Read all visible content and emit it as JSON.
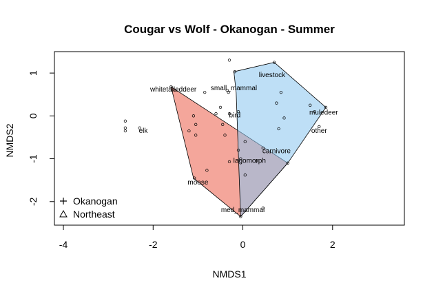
{
  "chart_data": {
    "type": "scatter",
    "title": "Cougar vs Wolf - Okanogan - Summer",
    "xlabel": "NMDS1",
    "ylabel": "NMDS2",
    "xlim": [
      -4.2,
      3.6
    ],
    "ylim": [
      -2.55,
      1.5
    ],
    "x_ticks": [
      -4,
      -2,
      0,
      2
    ],
    "y_ticks": [
      -2,
      -1,
      0,
      1
    ],
    "x_tick_labels": [
      "-4",
      "-2",
      "0",
      "2"
    ],
    "y_tick_labels": [
      "-2",
      "-1",
      "0",
      "1"
    ],
    "legend": {
      "position": "bottom-left",
      "entries": [
        {
          "label": "Okanogan",
          "symbol": "plus"
        },
        {
          "label": "Northeast",
          "symbol": "triangle"
        }
      ]
    },
    "hulls": [
      {
        "group": "Okanogan",
        "color": "#f08070",
        "opacity": 0.7,
        "points": [
          [
            -1.6,
            0.68
          ],
          [
            1.0,
            -1.1
          ],
          [
            -0.05,
            -2.35
          ],
          [
            -1.1,
            -1.45
          ]
        ]
      },
      {
        "group": "Northeast",
        "color": "#88c4ee",
        "opacity": 0.55,
        "points": [
          [
            -0.2,
            1.03
          ],
          [
            0.7,
            1.25
          ],
          [
            1.85,
            0.2
          ],
          [
            1.0,
            -1.1
          ],
          [
            -0.05,
            -2.35
          ],
          [
            -0.15,
            0.55
          ]
        ]
      }
    ],
    "points": [
      [
        -0.3,
        1.3
      ],
      [
        -0.18,
        1.03
      ],
      [
        0.7,
        1.25
      ],
      [
        0.85,
        0.55
      ],
      [
        0.75,
        0.3
      ],
      [
        1.5,
        0.25
      ],
      [
        1.6,
        0.1
      ],
      [
        0.92,
        -0.05
      ],
      [
        0.8,
        -0.3
      ],
      [
        1.85,
        0.2
      ],
      [
        1.7,
        -0.25
      ],
      [
        -1.6,
        0.68
      ],
      [
        -1.52,
        0.6
      ],
      [
        -0.85,
        0.55
      ],
      [
        -0.32,
        0.55
      ],
      [
        -0.35,
        0.6
      ],
      [
        -0.5,
        0.2
      ],
      [
        -0.6,
        0.05
      ],
      [
        -0.1,
        0.1
      ],
      [
        -0.3,
        0.05
      ],
      [
        -1.1,
        0.0
      ],
      [
        -1.05,
        -0.2
      ],
      [
        -0.45,
        -0.2
      ],
      [
        -1.2,
        -0.35
      ],
      [
        -1.05,
        -0.45
      ],
      [
        -0.4,
        -0.45
      ],
      [
        0.05,
        -0.6
      ],
      [
        -0.1,
        -0.8
      ],
      [
        0.45,
        -0.75
      ],
      [
        0.3,
        -1.05
      ],
      [
        -0.05,
        -1.0
      ],
      [
        -0.3,
        -1.07
      ],
      [
        0.05,
        -1.38
      ],
      [
        -0.8,
        -1.27
      ],
      [
        -1.08,
        -1.45
      ],
      [
        -0.05,
        -2.35
      ],
      [
        0.45,
        -2.15
      ],
      [
        1.0,
        -1.1
      ],
      [
        -2.62,
        -0.12
      ],
      [
        -2.62,
        -0.28
      ],
      [
        -2.62,
        -0.35
      ],
      [
        -2.3,
        -0.28
      ]
    ],
    "labels": [
      {
        "text": "livestock",
        "x": 0.65,
        "y": 0.95
      },
      {
        "text": "small_mammal",
        "x": -0.2,
        "y": 0.65
      },
      {
        "text": "whitetaileddeer",
        "x": -1.55,
        "y": 0.62
      },
      {
        "text": "bird",
        "x": -0.18,
        "y": 0.01
      },
      {
        "text": "muledeer",
        "x": 1.8,
        "y": 0.08
      },
      {
        "text": "elk",
        "x": -2.22,
        "y": -0.35
      },
      {
        "text": "other",
        "x": 1.7,
        "y": -0.35
      },
      {
        "text": "carnivore",
        "x": 0.75,
        "y": -0.82
      },
      {
        "text": "lagomorph",
        "x": 0.15,
        "y": -1.05
      },
      {
        "text": "moose",
        "x": -1.0,
        "y": -1.55
      },
      {
        "text": "med_mammal",
        "x": 0.0,
        "y": -2.2
      }
    ]
  }
}
